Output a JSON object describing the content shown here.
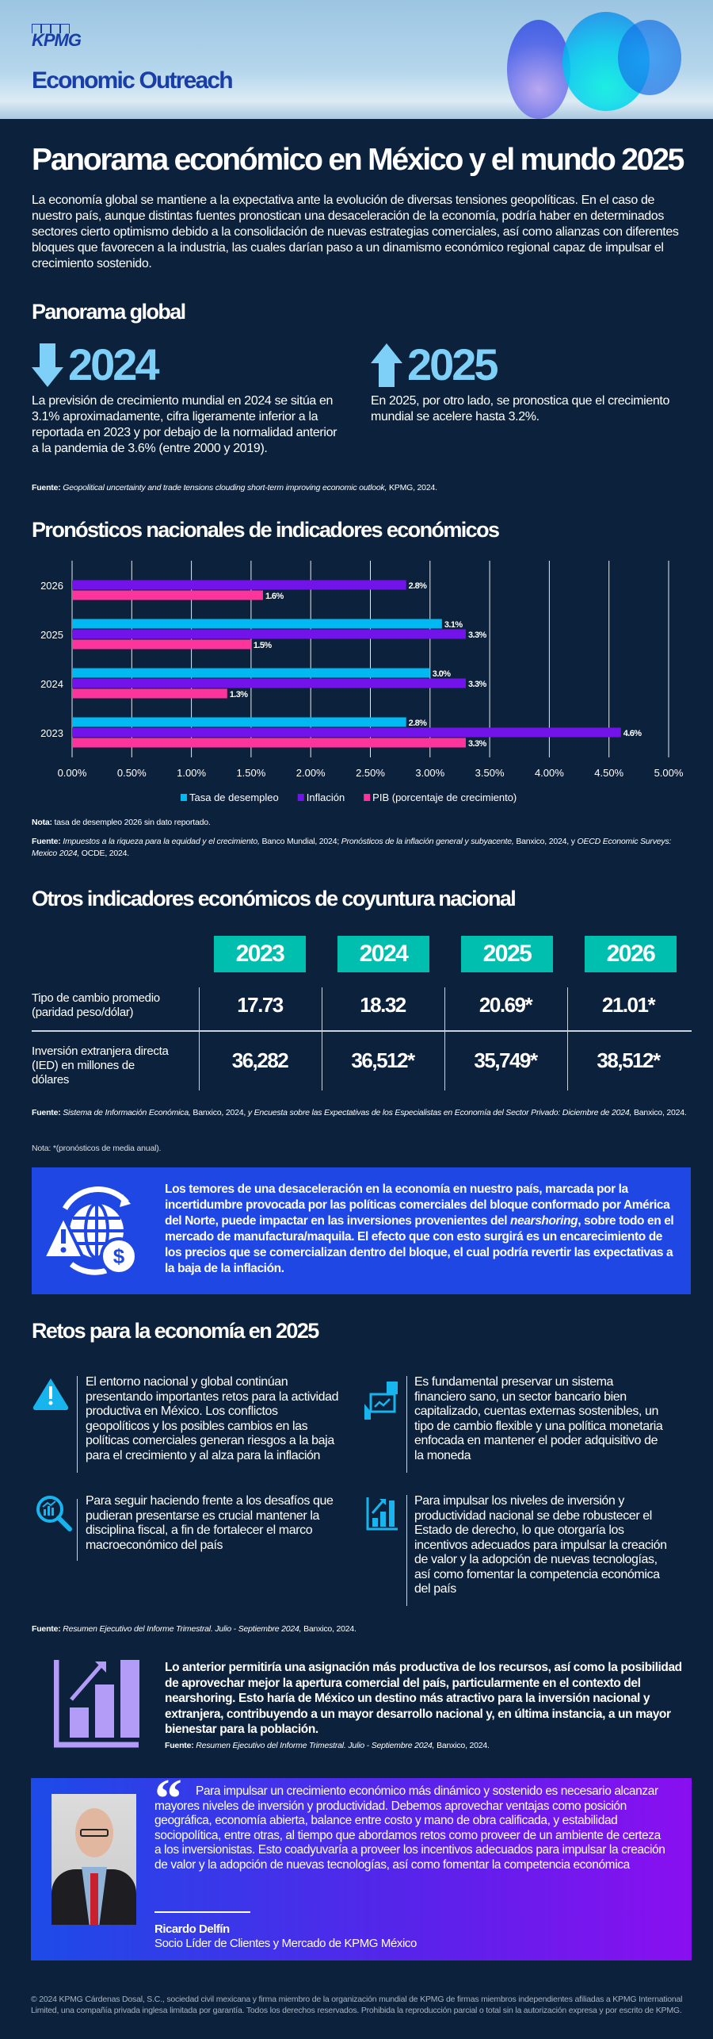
{
  "header": {
    "logo": "KPMG",
    "brand": "Economic Outreach"
  },
  "title": "Panorama económico en México y el mundo 2025",
  "intro": "La economía global se mantiene a la expectativa ante la evolución de diversas tensiones geopolíticas. En el caso de nuestro país, aunque distintas fuentes pronostican una desaceleración de la economía, podría haber en determinados sectores cierto optimismo debido a la consolidación de nuevas estrategias comerciales, así como alianzas con diferentes bloques que favorecen a la industria, las cuales darían paso a un dinamismo económico regional capaz de impulsar el crecimiento sostenido.",
  "global": {
    "heading": "Panorama global",
    "y2024": {
      "year": "2024",
      "direction": "down",
      "text": "La previsión de crecimiento mundial en 2024 se sitúa en 3.1% aproximadamente, cifra ligeramente inferior a la reportada en 2023 y por debajo de la normalidad anterior a la pandemia de 3.6% (entre 2000 y 2019)."
    },
    "y2025": {
      "year": "2025",
      "direction": "up",
      "text": "En 2025, por otro lado, se pronostica que el crecimiento mundial se acelere hasta 3.2%."
    },
    "source_label": "Fuente:",
    "source_title": "Geopolitical uncertainty and trade tensions clouding short-term improving economic outlook,",
    "source_rest": " KPMG, 2024."
  },
  "forecast": {
    "heading": "Pronósticos nacionales de indicadores económicos",
    "note_label": "Nota:",
    "note": " tasa de desempleo 2026 sin dato reportado.",
    "source_label": "Fuente:",
    "source_a": "Impuestos a la riqueza para la equidad y el crecimiento,",
    "source_b": " Banco Mundial, 2024; ",
    "source_c": "Pronósticos de la inflación general y subyacente,",
    "source_d": " Banxico, 2024, y ",
    "source_e": "OECD Economic Surveys: Mexico 2024,",
    "source_f": " OCDE, 2024."
  },
  "chart_data": {
    "type": "bar",
    "orientation": "horizontal",
    "categories": [
      "2026",
      "2025",
      "2024",
      "2023"
    ],
    "series": [
      {
        "name": "Tasa de desempleo",
        "color": "#00b8f2",
        "values": [
          null,
          3.1,
          3.0,
          2.8
        ],
        "labels": [
          "",
          "3.1%",
          "3.0%",
          "2.8%"
        ]
      },
      {
        "name": "Inflación",
        "color": "#7213ea",
        "values": [
          2.8,
          3.3,
          3.3,
          4.6
        ],
        "labels": [
          "2.8%",
          "3.3%",
          "3.3%",
          "4.6%"
        ]
      },
      {
        "name": "PIB (porcentaje de crecimiento)",
        "color": "#fd349c",
        "values": [
          1.6,
          1.5,
          1.3,
          3.3
        ],
        "labels": [
          "1.6%",
          "1.5%",
          "1.3%",
          "3.3%"
        ]
      }
    ],
    "xlim": [
      0,
      5
    ],
    "xticks": [
      "0.00%",
      "0.50%",
      "1.00%",
      "1.50%",
      "2.00%",
      "2.50%",
      "3.00%",
      "3.50%",
      "4.00%",
      "4.50%",
      "5.00%"
    ],
    "grid": true,
    "legend": "bottom"
  },
  "indicators": {
    "heading": "Otros indicadores económicos de coyuntura nacional",
    "years": [
      "2023",
      "2024",
      "2025",
      "2026"
    ],
    "rows": [
      {
        "label": "Tipo de cambio promedio (paridad peso/dólar)",
        "values": [
          "17.73",
          "18.32",
          "20.69*",
          "21.01*"
        ]
      },
      {
        "label": "Inversión extranjera directa (IED) en millones de dólares",
        "values": [
          "36,282",
          "36,512*",
          "35,749*",
          "38,512*"
        ]
      }
    ],
    "source_label": "Fuente:",
    "source_a": "Sistema de Información Económica,",
    "source_b": " Banxico, 2024, ",
    "source_c": "y Encuesta sobre las Expectativas de los Especialistas en Economía del Sector Privado: Diciembre de 2024,",
    "source_d": " Banxico, 2024.",
    "note": "Nota: *(pronósticos de media anual)."
  },
  "alert": {
    "text_a": "Los temores de una desaceleración en la economía en nuestro país, marcada por la incertidumbre provocada por las políticas comerciales del bloque conformado por América del Norte, puede impactar en las inversiones provenientes del ",
    "text_em": "nearshoring",
    "text_b": ", sobre todo en el mercado de manufactura/maquila. El efecto que con esto surgirá es un encarecimiento de los precios que se comercializan dentro del bloque, el cual podría revertir las expectativas a la baja de la inflación."
  },
  "retos": {
    "heading": "Retos para la economía en 2025",
    "items": [
      {
        "icon": "warning-icon",
        "text": "El entorno nacional y global continúan presentando importantes retos para la actividad productiva en México. Los conflictos geopolíticos y los posibles cambios en las políticas comerciales generan riesgos a la baja para el crecimiento y al alza para la inflación"
      },
      {
        "icon": "finance-tablet-icon",
        "text": "Es fundamental preservar un sistema financiero sano, un sector bancario bien capitalizado, cuentas externas sostenibles, un tipo de cambio flexible y una política monetaria enfocada en mantener el poder adquisitivo de la moneda"
      },
      {
        "icon": "magnifier-chart-icon",
        "text": "Para seguir haciendo frente a los desafíos que pudieran presentarse es crucial mantener la disciplina fiscal, a fin de fortalecer el marco macroeconómico del país"
      },
      {
        "icon": "growth-chart-icon",
        "text": "Para impulsar los niveles de inversión y productividad nacional se debe robustecer el Estado de derecho, lo que otorgaría los incentivos adecuados para impulsar la creación de valor y la adopción de nuevas tecnologías, así como fomentar la competencia económica del país"
      }
    ],
    "source_label": "Fuente:",
    "source_title": "Resumen Ejecutivo del Informe Trimestral. Julio - Septiembre 2024,",
    "source_rest": " Banxico, 2024."
  },
  "conclusion": {
    "text": "Lo anterior permitiría una asignación más productiva de los recursos, así como la posibilidad de aprovechar mejor la apertura comercial del país, particularmente en el contexto del nearshoring. Esto haría de México un destino más atractivo para la inversión nacional y extranjera, contribuyendo a un mayor desarrollo nacional y, en última instancia, a un mayor bienestar para la población.",
    "source_label": "Fuente:",
    "source_title": "Resumen Ejecutivo del Informe Trimestral. Julio - Septiembre 2024,",
    "source_rest": " Banxico, 2024."
  },
  "quote": {
    "mark": "“",
    "text": "Para impulsar un crecimiento económico más dinámico y sostenido es necesario alcanzar mayores niveles de inversión y productividad. Debemos aprovechar ventajas como posición geográfica, economía abierta, balance entre costo y mano de obra calificada, y estabilidad sociopolítica, entre otras, al tiempo que abordamos retos como proveer de un ambiente de certeza a los inversionistas. Esto coadyuvaría a proveer los incentivos adecuados para impulsar la creación de valor y la adopción de nuevas tecnologías, así como fomentar la competencia económica",
    "name": "Ricardo Delfín",
    "role": "Socio Líder de Clientes y Mercado de KPMG México"
  },
  "footer": "© 2024 KPMG Cárdenas Dosal, S.C., sociedad civil mexicana y firma miembro de la organización mundial de KPMG de firmas miembros independientes afiliadas a KPMG International Limited, una compañía privada inglesa limitada por garantía. Todos los derechos reservados. Prohibida la reproducción parcial o total sin la autorización expresa y por escrito de KPMG."
}
